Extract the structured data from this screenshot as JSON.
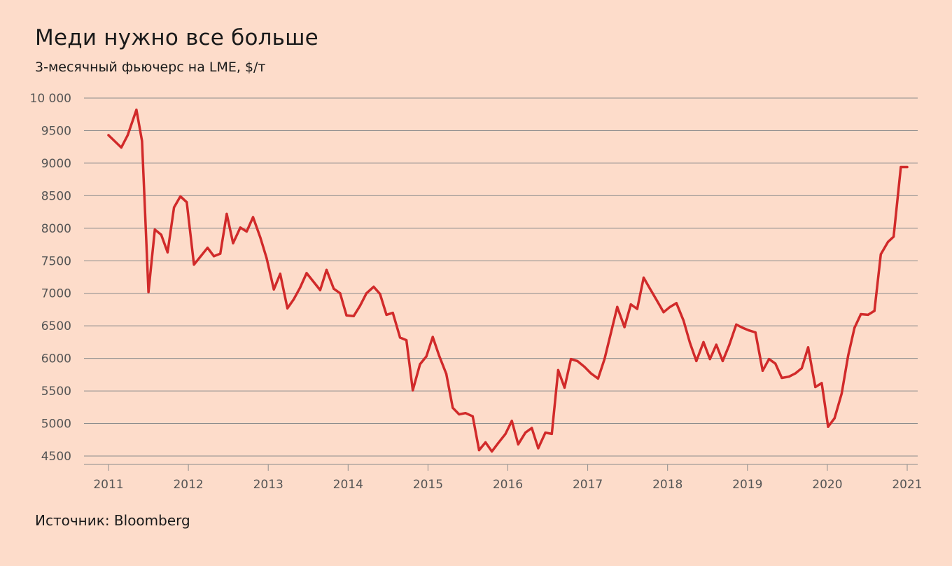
{
  "title": "Меди нужно все больше",
  "subtitle": "3-месячный фьючерс на LME, $/т",
  "source": "Источник: Bloomberg",
  "colors": {
    "background": "#fddcca",
    "line": "#d12a2a",
    "grid": "#8c8c8c",
    "tick_text": "#555555"
  },
  "chart_data": {
    "type": "line",
    "title": "Меди нужно все больше",
    "subtitle": "3-месячный фьючерс на LME, $/т",
    "xlabel": "",
    "ylabel": "",
    "ylim": [
      4500,
      10000
    ],
    "xlim": [
      2011.0,
      2021.0
    ],
    "grid": "horizontal",
    "legend": "none",
    "y_ticks": [
      {
        "value": 10000,
        "label": "10 000"
      },
      {
        "value": 9500,
        "label": "9500"
      },
      {
        "value": 9000,
        "label": "9000"
      },
      {
        "value": 8500,
        "label": "8500"
      },
      {
        "value": 8000,
        "label": "8000"
      },
      {
        "value": 7500,
        "label": "7500"
      },
      {
        "value": 7000,
        "label": "7000"
      },
      {
        "value": 6500,
        "label": "6500"
      },
      {
        "value": 6000,
        "label": "6000"
      },
      {
        "value": 5500,
        "label": "5500"
      },
      {
        "value": 5000,
        "label": "5000"
      },
      {
        "value": 4500,
        "label": "4500"
      }
    ],
    "x_ticks": [
      {
        "value": 2011,
        "label": "2011"
      },
      {
        "value": 2012,
        "label": "2012"
      },
      {
        "value": 2013,
        "label": "2013"
      },
      {
        "value": 2014,
        "label": "2014"
      },
      {
        "value": 2015,
        "label": "2015"
      },
      {
        "value": 2016,
        "label": "2016"
      },
      {
        "value": 2017,
        "label": "2017"
      },
      {
        "value": 2018,
        "label": "2018"
      },
      {
        "value": 2019,
        "label": "2019"
      },
      {
        "value": 2020,
        "label": "2020"
      },
      {
        "value": 2021,
        "label": "2021"
      }
    ],
    "series": [
      {
        "x": [
          2011.0,
          2011.16,
          2011.24,
          2011.35,
          2011.42,
          2011.5,
          2011.58,
          2011.66,
          2011.74,
          2011.82,
          2011.9,
          2011.98,
          2012.07,
          2012.24,
          2012.32,
          2012.4,
          2012.48,
          2012.56,
          2012.65,
          2012.73,
          2012.81,
          2012.9,
          2012.98,
          2013.07,
          2013.15,
          2013.24,
          2013.32,
          2013.4,
          2013.48,
          2013.65,
          2013.73,
          2013.82,
          2013.9,
          2013.98,
          2014.07,
          2014.15,
          2014.23,
          2014.32,
          2014.4,
          2014.48,
          2014.56,
          2014.65,
          2014.73,
          2014.81,
          2014.9,
          2014.98,
          2015.06,
          2015.14,
          2015.23,
          2015.31,
          2015.39,
          2015.47,
          2015.56,
          2015.64,
          2015.72,
          2015.8,
          2015.88,
          2015.97,
          2016.05,
          2016.13,
          2016.22,
          2016.3,
          2016.38,
          2016.47,
          2016.55,
          2016.63,
          2016.71,
          2016.79,
          2016.87,
          2016.96,
          2017.04,
          2017.13,
          2017.21,
          2017.29,
          2017.37,
          2017.46,
          2017.54,
          2017.62,
          2017.7,
          2017.78,
          2017.87,
          2017.95,
          2018.03,
          2018.11,
          2018.2,
          2018.28,
          2018.36,
          2018.45,
          2018.53,
          2018.61,
          2018.69,
          2018.77,
          2018.86,
          2018.94,
          2019.02,
          2019.1,
          2019.19,
          2019.27,
          2019.35,
          2019.43,
          2019.52,
          2019.6,
          2019.68,
          2019.76,
          2019.85,
          2019.93,
          2020.01,
          2020.09,
          2020.18,
          2020.26,
          2020.34,
          2020.42,
          2020.51,
          2020.59,
          2020.67,
          2020.76,
          2020.83,
          2020.92,
          2021.0
        ],
        "values": [
          9430,
          9240,
          9430,
          9820,
          9340,
          7020,
          7980,
          7900,
          7630,
          8320,
          8490,
          8400,
          7440,
          7700,
          7570,
          7610,
          8220,
          7770,
          8010,
          7950,
          8170,
          7860,
          7540,
          7060,
          7300,
          6770,
          6910,
          7090,
          7310,
          7050,
          7360,
          7070,
          7000,
          6660,
          6650,
          6810,
          7000,
          7100,
          6990,
          6670,
          6700,
          6320,
          6280,
          5510,
          5910,
          6030,
          6330,
          6040,
          5760,
          5240,
          5140,
          5160,
          5110,
          4590,
          4710,
          4570,
          4700,
          4840,
          5040,
          4680,
          4860,
          4930,
          4620,
          4860,
          4840,
          5820,
          5550,
          5990,
          5960,
          5870,
          5770,
          5690,
          5990,
          6390,
          6790,
          6480,
          6830,
          6760,
          7240,
          7070,
          6880,
          6710,
          6790,
          6850,
          6580,
          6240,
          5960,
          6250,
          5990,
          6210,
          5960,
          6200,
          6520,
          6470,
          6430,
          6400,
          5810,
          5990,
          5920,
          5700,
          5720,
          5770,
          5850,
          6170,
          5560,
          5620,
          4950,
          5080,
          5460,
          6040,
          6470,
          6680,
          6670,
          6730,
          7600,
          7790,
          7870,
          8940,
          8940
        ]
      }
    ]
  }
}
